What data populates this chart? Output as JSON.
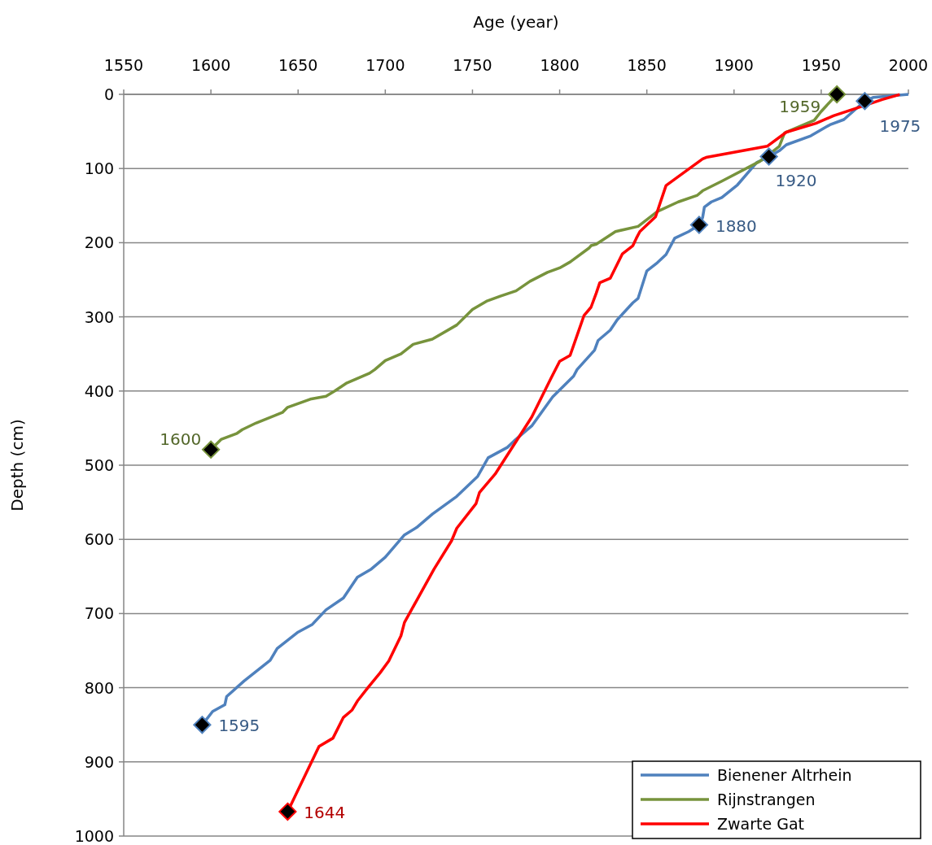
{
  "chart_data": {
    "type": "line",
    "xlabel": "Age (year)",
    "ylabel": "Depth (cm)",
    "xlim": [
      1550,
      2000
    ],
    "xticks": [
      1550,
      1600,
      1650,
      1700,
      1750,
      1800,
      1850,
      1900,
      1950,
      2000
    ],
    "ylim": [
      1000,
      0
    ],
    "yticks": [
      0,
      100,
      200,
      300,
      400,
      500,
      600,
      700,
      800,
      900,
      1000
    ],
    "grid": "y",
    "legend": "bottom right",
    "series": [
      {
        "name": "Bienener Altrhein",
        "color": "#4f81bd",
        "x": [
          1595,
          1601,
          1608,
          1609,
          1619,
          1634,
          1638,
          1650,
          1658,
          1666,
          1676,
          1684,
          1692,
          1700,
          1711,
          1718,
          1727,
          1741,
          1753,
          1759,
          1770,
          1774,
          1784,
          1796,
          1808,
          1810,
          1820,
          1822,
          1829,
          1833,
          1842,
          1845,
          1850,
          1856,
          1861,
          1866,
          1874,
          1880,
          1882,
          1883,
          1887,
          1893,
          1902,
          1913,
          1920,
          1926,
          1930,
          1944,
          1955,
          1963,
          1975,
          1980,
          2000
        ],
        "values": [
          850,
          832,
          823,
          812,
          791,
          763,
          747,
          725,
          715,
          695,
          679,
          651,
          640,
          624,
          594,
          584,
          566,
          542,
          515,
          490,
          476,
          467,
          447,
          408,
          380,
          371,
          345,
          332,
          318,
          304,
          281,
          275,
          238,
          227,
          216,
          194,
          185,
          176,
          166,
          152,
          145,
          139,
          122,
          92,
          84,
          76,
          68,
          56,
          41,
          34,
          9,
          4,
          0
        ]
      },
      {
        "name": "Rijnstrangen",
        "color": "#77933c",
        "x": [
          1600,
          1606,
          1615,
          1618,
          1626,
          1641,
          1644,
          1657,
          1666,
          1671,
          1678,
          1691,
          1694,
          1700,
          1709,
          1716,
          1727,
          1741,
          1750,
          1758,
          1766,
          1775,
          1783,
          1793,
          1800,
          1806,
          1817,
          1818,
          1821,
          1832,
          1845,
          1856,
          1868,
          1879,
          1882,
          1893,
          1915,
          1919,
          1926,
          1929,
          1946,
          1950,
          1959
        ],
        "values": [
          479,
          465,
          457,
          452,
          443,
          429,
          422,
          411,
          407,
          400,
          389,
          376,
          371,
          359,
          350,
          337,
          330,
          311,
          290,
          279,
          272,
          265,
          252,
          240,
          234,
          226,
          207,
          204,
          202,
          185,
          178,
          158,
          145,
          136,
          130,
          117,
          90,
          83,
          70,
          52,
          35,
          23,
          0
        ]
      },
      {
        "name": "Zwarte Gat",
        "color": "#ff0000",
        "x": [
          1644,
          1662,
          1670,
          1676,
          1681,
          1684,
          1690,
          1697,
          1702,
          1709,
          1711,
          1715,
          1728,
          1738,
          1741,
          1752,
          1754,
          1763,
          1784,
          1795,
          1800,
          1806,
          1810,
          1814,
          1818,
          1821,
          1823,
          1829,
          1836,
          1842,
          1844,
          1846,
          1855,
          1861,
          1882,
          1884,
          1919,
          1930,
          1947,
          1957,
          1975,
          1985,
          1994,
          1995
        ],
        "values": [
          967,
          879,
          868,
          840,
          830,
          818,
          800,
          780,
          764,
          730,
          712,
          695,
          640,
          602,
          585,
          552,
          537,
          512,
          435,
          383,
          360,
          352,
          325,
          298,
          287,
          268,
          254,
          248,
          215,
          204,
          194,
          185,
          165,
          123,
          87,
          85,
          70,
          51,
          39,
          29,
          15,
          7,
          1,
          0
        ]
      },
      {
        "type": "scatter",
        "color": "#000000",
        "marker": "diamond",
        "x": [
          1595,
          1880,
          1920,
          1975
        ],
        "values": [
          850,
          176,
          84,
          9
        ]
      },
      {
        "type": "scatter",
        "color": "#000000",
        "marker": "diamond",
        "x": [
          1600,
          1959
        ],
        "values": [
          479,
          0
        ]
      },
      {
        "type": "scatter",
        "color": "#000000",
        "marker": "diamond",
        "x": [
          1644
        ],
        "values": [
          967
        ]
      }
    ],
    "annotations": [
      {
        "text": "1595",
        "x": 1595,
        "y": 850
      },
      {
        "text": "1880",
        "x": 1880,
        "y": 176
      },
      {
        "text": "1920",
        "x": 1920,
        "y": 84
      },
      {
        "text": "1975",
        "x": 1975,
        "y": 9
      },
      {
        "text": "1600",
        "x": 1600,
        "y": 479
      },
      {
        "text": "1959",
        "x": 1959,
        "y": 0
      },
      {
        "text": "1644",
        "x": 1644,
        "y": 967
      }
    ]
  }
}
